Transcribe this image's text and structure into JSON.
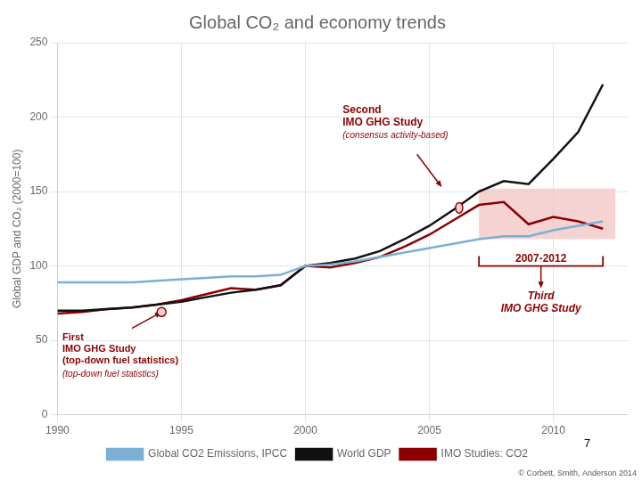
{
  "chart_data": {
    "type": "line",
    "title": "Global CO₂ and economy trends",
    "y_label": "Global GDP and CO₂ (2000=100)",
    "x": [
      1990,
      1991,
      1992,
      1993,
      1994,
      1995,
      1996,
      1997,
      1998,
      1999,
      2000,
      2001,
      2002,
      2003,
      2004,
      2005,
      2006,
      2007,
      2008,
      2009,
      2010,
      2011,
      2012
    ],
    "series": [
      {
        "name": "Global CO2 Emissions, IPCC",
        "color": "#7bafd4",
        "values": [
          89,
          89,
          89,
          89,
          90,
          91,
          92,
          93,
          93,
          94,
          100,
          101,
          103,
          106,
          109,
          112,
          115,
          118,
          120,
          120,
          124,
          127,
          130
        ]
      },
      {
        "name": "World GDP",
        "color": "#111111",
        "values": [
          70,
          70,
          71,
          72,
          74,
          76,
          79,
          82,
          84,
          87,
          100,
          102,
          105,
          110,
          118,
          127,
          138,
          150,
          157,
          155,
          172,
          190,
          222
        ]
      },
      {
        "name": "IMO Studies: CO2",
        "color": "#8b0000",
        "values": [
          68,
          69,
          71,
          72,
          74,
          77,
          81,
          85,
          84,
          87,
          100,
          99,
          102,
          106,
          113,
          121,
          131,
          141,
          143,
          128,
          133,
          130,
          125
        ]
      }
    ],
    "xlim": [
      1990,
      2013
    ],
    "xticks": [
      1990,
      1995,
      2000,
      2005,
      2010
    ],
    "ylim": [
      0,
      250
    ],
    "yticks": [
      0,
      50,
      100,
      150,
      200,
      250
    ],
    "grid": true,
    "legend": "bottom",
    "shaded_region": {
      "x": [
        2007,
        2012.5
      ],
      "y": [
        118,
        152
      ],
      "color": "#f2c0c0"
    },
    "bracket": {
      "x": [
        2007,
        2012
      ],
      "y": 100,
      "label": "2007-2012",
      "color": "#8b0000"
    },
    "annotations": [
      {
        "text": "First\nIMO GHG Study\n(top-down fuel statistics)",
        "color": "#8b0000"
      },
      {
        "text": "(top-down fuel statistics)",
        "color": "#8b0000"
      },
      {
        "text": "Second\nIMO GHG Study",
        "color": "#8b0000"
      },
      {
        "text": "(consensus activity-based)",
        "color": "#8b0000"
      },
      {
        "text": "Third\nIMO GHG Study",
        "color": "#8b0000"
      }
    ],
    "page_number": "7",
    "footnote": "© Corbett, Smith, Anderson 2014"
  }
}
